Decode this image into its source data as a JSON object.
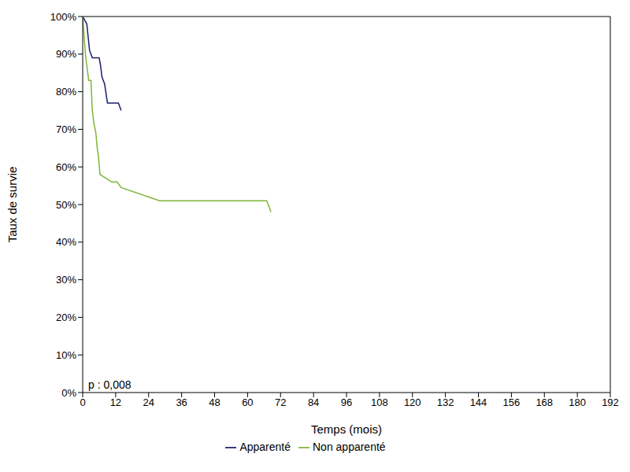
{
  "chart_data": {
    "type": "line",
    "annotation": "p : 0,008",
    "x_label": "Temps (mois)",
    "y_label": "Taux de survie",
    "xlim": [
      0,
      192
    ],
    "xticks": [
      0,
      12,
      24,
      36,
      48,
      60,
      72,
      84,
      96,
      108,
      120,
      132,
      144,
      156,
      168,
      180,
      192
    ],
    "ylim": [
      0,
      100
    ],
    "yticks": [
      {
        "value": 0,
        "label": "0%"
      },
      {
        "value": 10,
        "label": "10%"
      },
      {
        "value": 20,
        "label": "20%"
      },
      {
        "value": 30,
        "label": "30%"
      },
      {
        "value": 40,
        "label": "40%"
      },
      {
        "value": 50,
        "label": "50%"
      },
      {
        "value": 60,
        "label": "60%"
      },
      {
        "value": 70,
        "label": "70%"
      },
      {
        "value": 80,
        "label": "80%"
      },
      {
        "value": 90,
        "label": "90%"
      },
      {
        "value": 100,
        "label": "100%"
      }
    ],
    "grid": false,
    "legend": "bottom",
    "series": [
      {
        "name": "Apparenté",
        "color": "#1c1f6e",
        "x": [
          0,
          1.5,
          2.5,
          3.5,
          6,
          6.5,
          7,
          8,
          9,
          13,
          14
        ],
        "values": [
          100,
          98,
          91,
          89,
          89,
          87,
          84,
          82,
          77,
          77,
          75
        ]
      },
      {
        "name": "Non apparenté",
        "color": "#7fb539",
        "x": [
          0,
          0.5,
          1,
          1.5,
          2.2,
          3,
          3.5,
          4,
          4.8,
          5.3,
          5.7,
          6.3,
          8.5,
          10.5,
          12.5,
          14,
          28,
          67,
          68.5
        ],
        "values": [
          100,
          95,
          90,
          87,
          83,
          83,
          75,
          72,
          69,
          65,
          63,
          58,
          57,
          56,
          56,
          54.5,
          51,
          51,
          48
        ]
      }
    ]
  }
}
